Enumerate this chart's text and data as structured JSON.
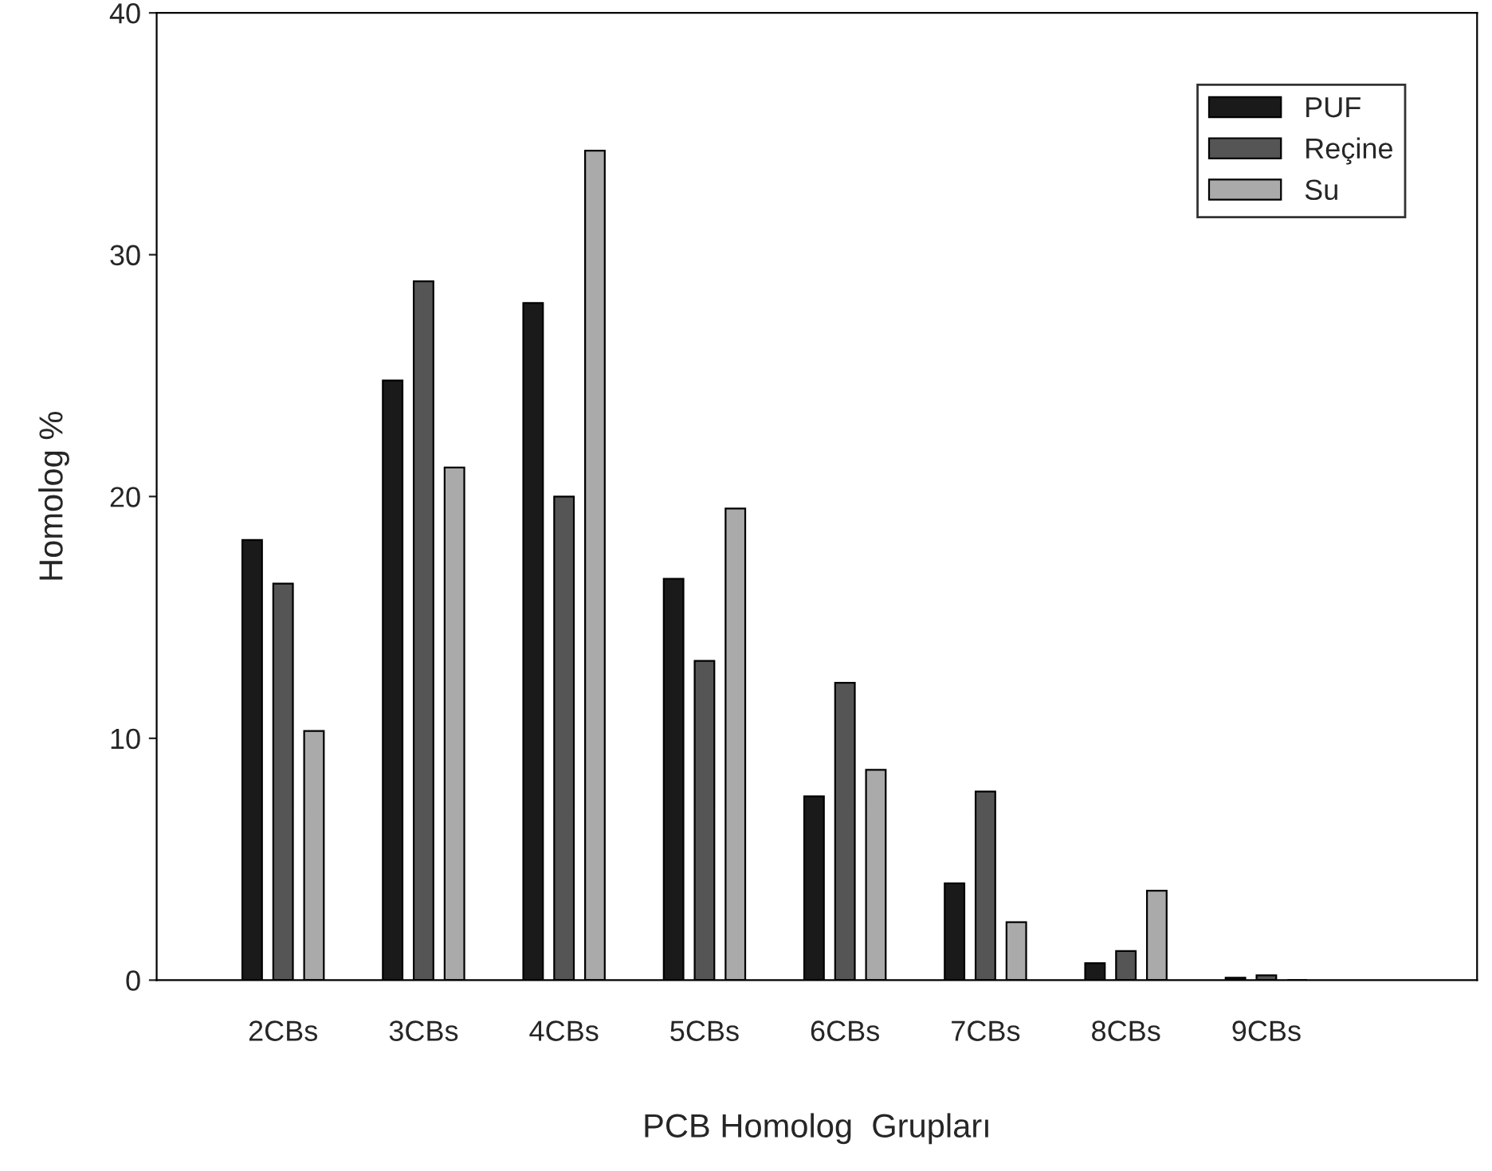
{
  "chart_data": {
    "type": "bar",
    "xlabel": "PCB Homolog  Grupları",
    "ylabel": "Homolog %",
    "categories": [
      "2CBs",
      "3CBs",
      "4CBs",
      "5CBs",
      "6CBs",
      "7CBs",
      "8CBs",
      "9CBs"
    ],
    "series": [
      {
        "name": "PUF",
        "color": "#1a1a1a",
        "values": [
          18.2,
          24.8,
          28.0,
          16.6,
          7.6,
          4.0,
          0.7,
          0.1
        ]
      },
      {
        "name": "Reçine",
        "color": "#555555",
        "values": [
          16.4,
          28.9,
          20.0,
          13.2,
          12.3,
          7.8,
          1.2,
          0.2
        ]
      },
      {
        "name": "Su",
        "color": "#aaaaaa",
        "values": [
          10.3,
          21.2,
          34.3,
          19.5,
          8.7,
          2.4,
          3.7,
          0
        ]
      }
    ],
    "ylim": [
      0,
      40
    ],
    "yticks": [
      0,
      10,
      20,
      30,
      40
    ],
    "grid": false,
    "legend": "top right"
  }
}
